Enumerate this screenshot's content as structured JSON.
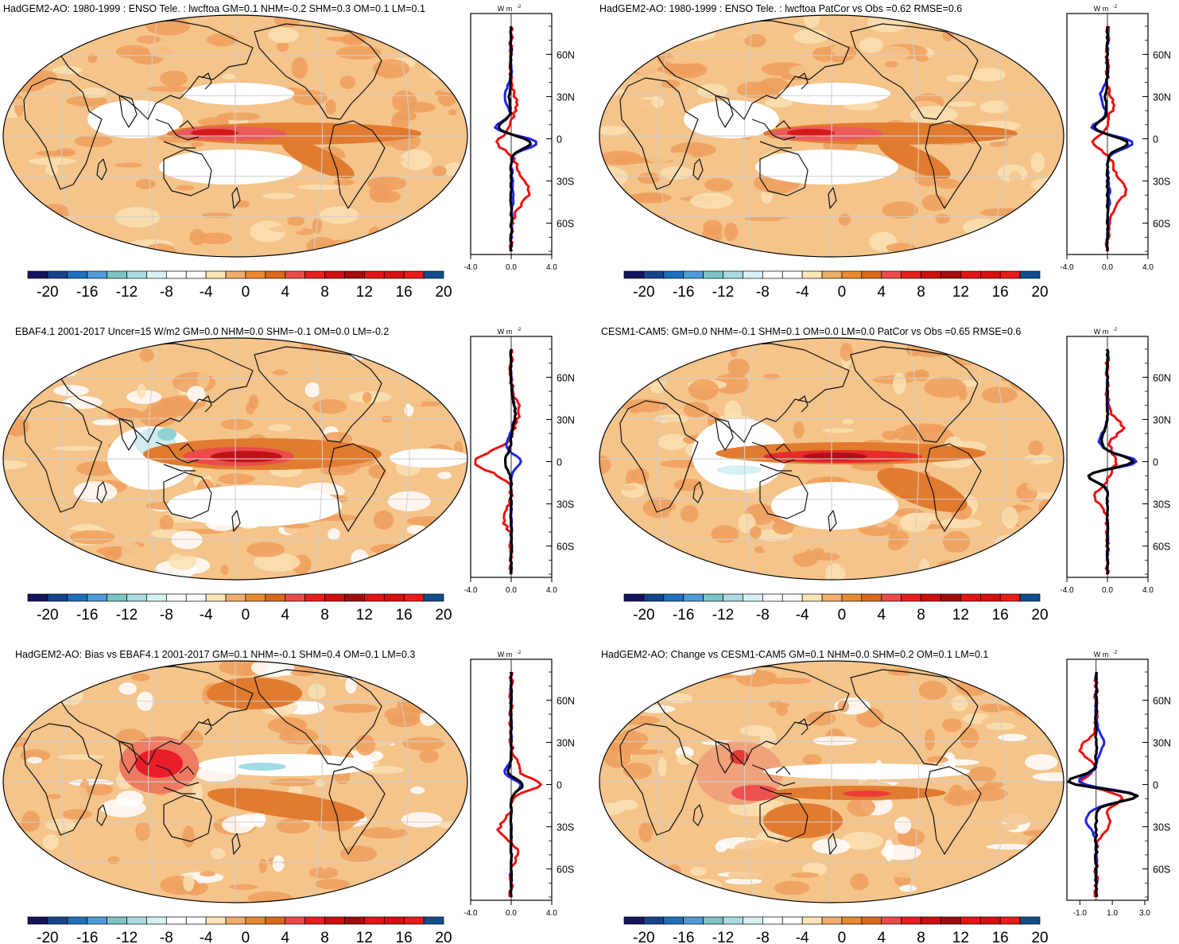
{
  "colorbar": {
    "colors": [
      "#14145e",
      "#16448c",
      "#1f6fbd",
      "#4f9bd9",
      "#7dc4c6",
      "#a9dbe1",
      "#d7f2f4",
      "#ffffff",
      "#ffffff",
      "#fce6b8",
      "#f0ad6c",
      "#e8892f",
      "#db6a1c",
      "#ec4a4a",
      "#e81e1e",
      "#cc0f0f",
      "#a30c0c",
      "#e41414",
      "#d70f0f",
      "#e81a1a",
      "#124e8c"
    ],
    "labels": [
      "-20",
      "-16",
      "-12",
      "-8",
      "-4",
      "0",
      "4",
      "8",
      "12",
      "16",
      "20"
    ]
  },
  "panels": [
    {
      "title": "HadGEM2-AO: 1980-1999 : ENSO Tele. : lwcftoa GM=0.1 NHM=-0.2 SHM=0.3 OM=0.1 LM=0.1",
      "zonal": {
        "unit": "W m",
        "unit_sup": "-2",
        "x_ticks": [
          "-4.0",
          "0.0",
          "4.0"
        ],
        "x_range": [
          -4,
          4
        ],
        "lat_ticks": [
          "60N",
          "30N",
          "0",
          "30S",
          "60S"
        ]
      }
    },
    {
      "title": "HadGEM2-AO: 1980-1999 : ENSO Tele. : lwcftoa PatCor vs Obs =0.62 RMSE=0.6",
      "zonal": {
        "unit": "W m",
        "unit_sup": "-2",
        "x_ticks": [
          "-4.0",
          "0.0",
          "4.0"
        ],
        "x_range": [
          -4,
          4
        ],
        "lat_ticks": [
          "60N",
          "30N",
          "0",
          "30S",
          "60S"
        ]
      }
    },
    {
      "title": "EBAF4.1 2001-2017 Uncer=15 W/m2 GM=0.0 NHM=0.0 SHM=-0.1 OM=0.0 LM=-0.2",
      "zonal": {
        "unit": "W m",
        "unit_sup": "-2",
        "x_ticks": [
          "-4.0",
          "0.0",
          "4.0"
        ],
        "x_range": [
          -4,
          4
        ],
        "lat_ticks": [
          "60N",
          "30N",
          "0",
          "30S",
          "60S"
        ]
      }
    },
    {
      "title": "CESM1-CAM5: GM=0.0 NHM=-0.1 SHM=0.1 OM=0.0 LM=0.0 PatCor vs Obs =0.65 RMSE=0.6",
      "zonal": {
        "unit": "W m",
        "unit_sup": "-2",
        "x_ticks": [
          "-4.0",
          "0.0",
          "4.0"
        ],
        "x_range": [
          -4,
          4
        ],
        "lat_ticks": [
          "60N",
          "30N",
          "0",
          "30S",
          "60S"
        ]
      }
    },
    {
      "title": "HadGEM2-AO: Bias vs EBAF4.1 2001-2017 GM=0.1 NHM=-0.1 SHM=0.4 OM=0.1 LM=0.3",
      "zonal": {
        "unit": "W m",
        "unit_sup": "-2",
        "x_ticks": [
          "-4.0",
          "0.0",
          "4.0"
        ],
        "x_range": [
          -4,
          4
        ],
        "lat_ticks": [
          "60N",
          "30N",
          "0",
          "30S",
          "60S"
        ]
      }
    },
    {
      "title": "HadGEM2-AO: Change vs CESM1-CAM5 GM=0.1 NHM=0.0 SHM=0.2 OM=0.1 LM=0.1",
      "zonal": {
        "unit": "W m",
        "unit_sup": "-2",
        "x_ticks": [
          "-1.0",
          "1.0",
          "3.0"
        ],
        "x_range": [
          -1.8,
          3.2
        ],
        "lat_ticks": [
          "60N",
          "30N",
          "0",
          "30S",
          "60S"
        ]
      }
    }
  ],
  "colors": {
    "series_red": "#ee1111",
    "series_blue": "#1f25e6",
    "series_black": "#000000",
    "land_outline": "#111111",
    "graticule": "#d0d0d0"
  }
}
